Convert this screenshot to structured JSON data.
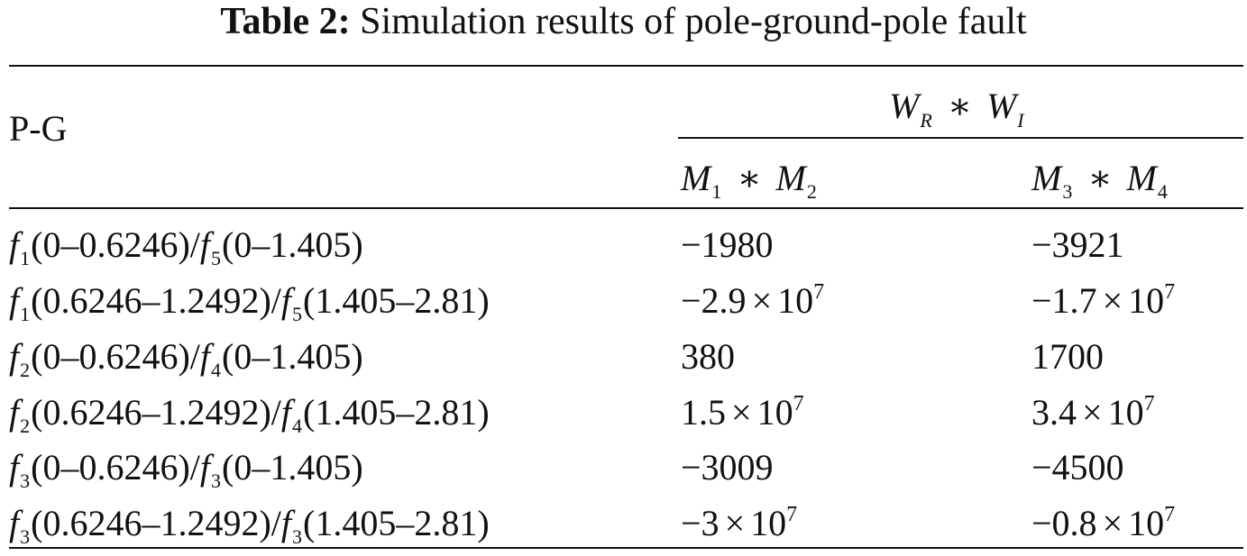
{
  "caption": {
    "label": "Table 2:",
    "text": "Simulation results of pole-ground-pole fault"
  },
  "table": {
    "row_header": "P-G",
    "group_header": {
      "a": "W",
      "a_sub": "R",
      "op": "∗",
      "b": "W",
      "b_sub": "I"
    },
    "col1": {
      "a": "M",
      "a_sub": "1",
      "op": "∗",
      "b": "M",
      "b_sub": "2"
    },
    "col2": {
      "a": "M",
      "a_sub": "3",
      "op": "∗",
      "b": "M",
      "b_sub": "4"
    },
    "rows": [
      {
        "f_a": "f",
        "f_a_sub": "1",
        "range_a": "(0–0.6246)",
        "slash": "/",
        "f_b": "f",
        "f_b_sub": "5",
        "range_b": "(0–1.405)",
        "v1": {
          "mant": "−1980",
          "times": "",
          "base": "",
          "exp": ""
        },
        "v2": {
          "mant": "−3921",
          "times": "",
          "base": "",
          "exp": ""
        }
      },
      {
        "f_a": "f",
        "f_a_sub": "1",
        "range_a": "(0.6246–1.2492)",
        "slash": "/",
        "f_b": "f",
        "f_b_sub": "5",
        "range_b": "(1.405–2.81)",
        "v1": {
          "mant": "−2.9",
          "times": "×",
          "base": "10",
          "exp": "7"
        },
        "v2": {
          "mant": "−1.7",
          "times": "×",
          "base": "10",
          "exp": "7"
        }
      },
      {
        "f_a": "f",
        "f_a_sub": "2",
        "range_a": "(0–0.6246)",
        "slash": "/",
        "f_b": "f",
        "f_b_sub": "4",
        "range_b": "(0–1.405)",
        "v1": {
          "mant": "380",
          "times": "",
          "base": "",
          "exp": ""
        },
        "v2": {
          "mant": "1700",
          "times": "",
          "base": "",
          "exp": ""
        }
      },
      {
        "f_a": "f",
        "f_a_sub": "2",
        "range_a": "(0.6246–1.2492)",
        "slash": "/",
        "f_b": "f",
        "f_b_sub": "4",
        "range_b": "(1.405–2.81)",
        "v1": {
          "mant": "1.5",
          "times": "×",
          "base": "10",
          "exp": "7"
        },
        "v2": {
          "mant": "3.4",
          "times": "×",
          "base": "10",
          "exp": "7"
        }
      },
      {
        "f_a": "f",
        "f_a_sub": "3",
        "range_a": "(0–0.6246)",
        "slash": "/",
        "f_b": "f",
        "f_b_sub": "3",
        "range_b": "(0–1.405)",
        "v1": {
          "mant": "−3009",
          "times": "",
          "base": "",
          "exp": ""
        },
        "v2": {
          "mant": "−4500",
          "times": "",
          "base": "",
          "exp": ""
        }
      },
      {
        "f_a": "f",
        "f_a_sub": "3",
        "range_a": "(0.6246–1.2492)",
        "slash": "/",
        "f_b": "f",
        "f_b_sub": "3",
        "range_b": "(1.405–2.81)",
        "v1": {
          "mant": "−3",
          "times": "×",
          "base": "10",
          "exp": "7"
        },
        "v2": {
          "mant": "−0.8",
          "times": "×",
          "base": "10",
          "exp": "7"
        }
      }
    ]
  }
}
